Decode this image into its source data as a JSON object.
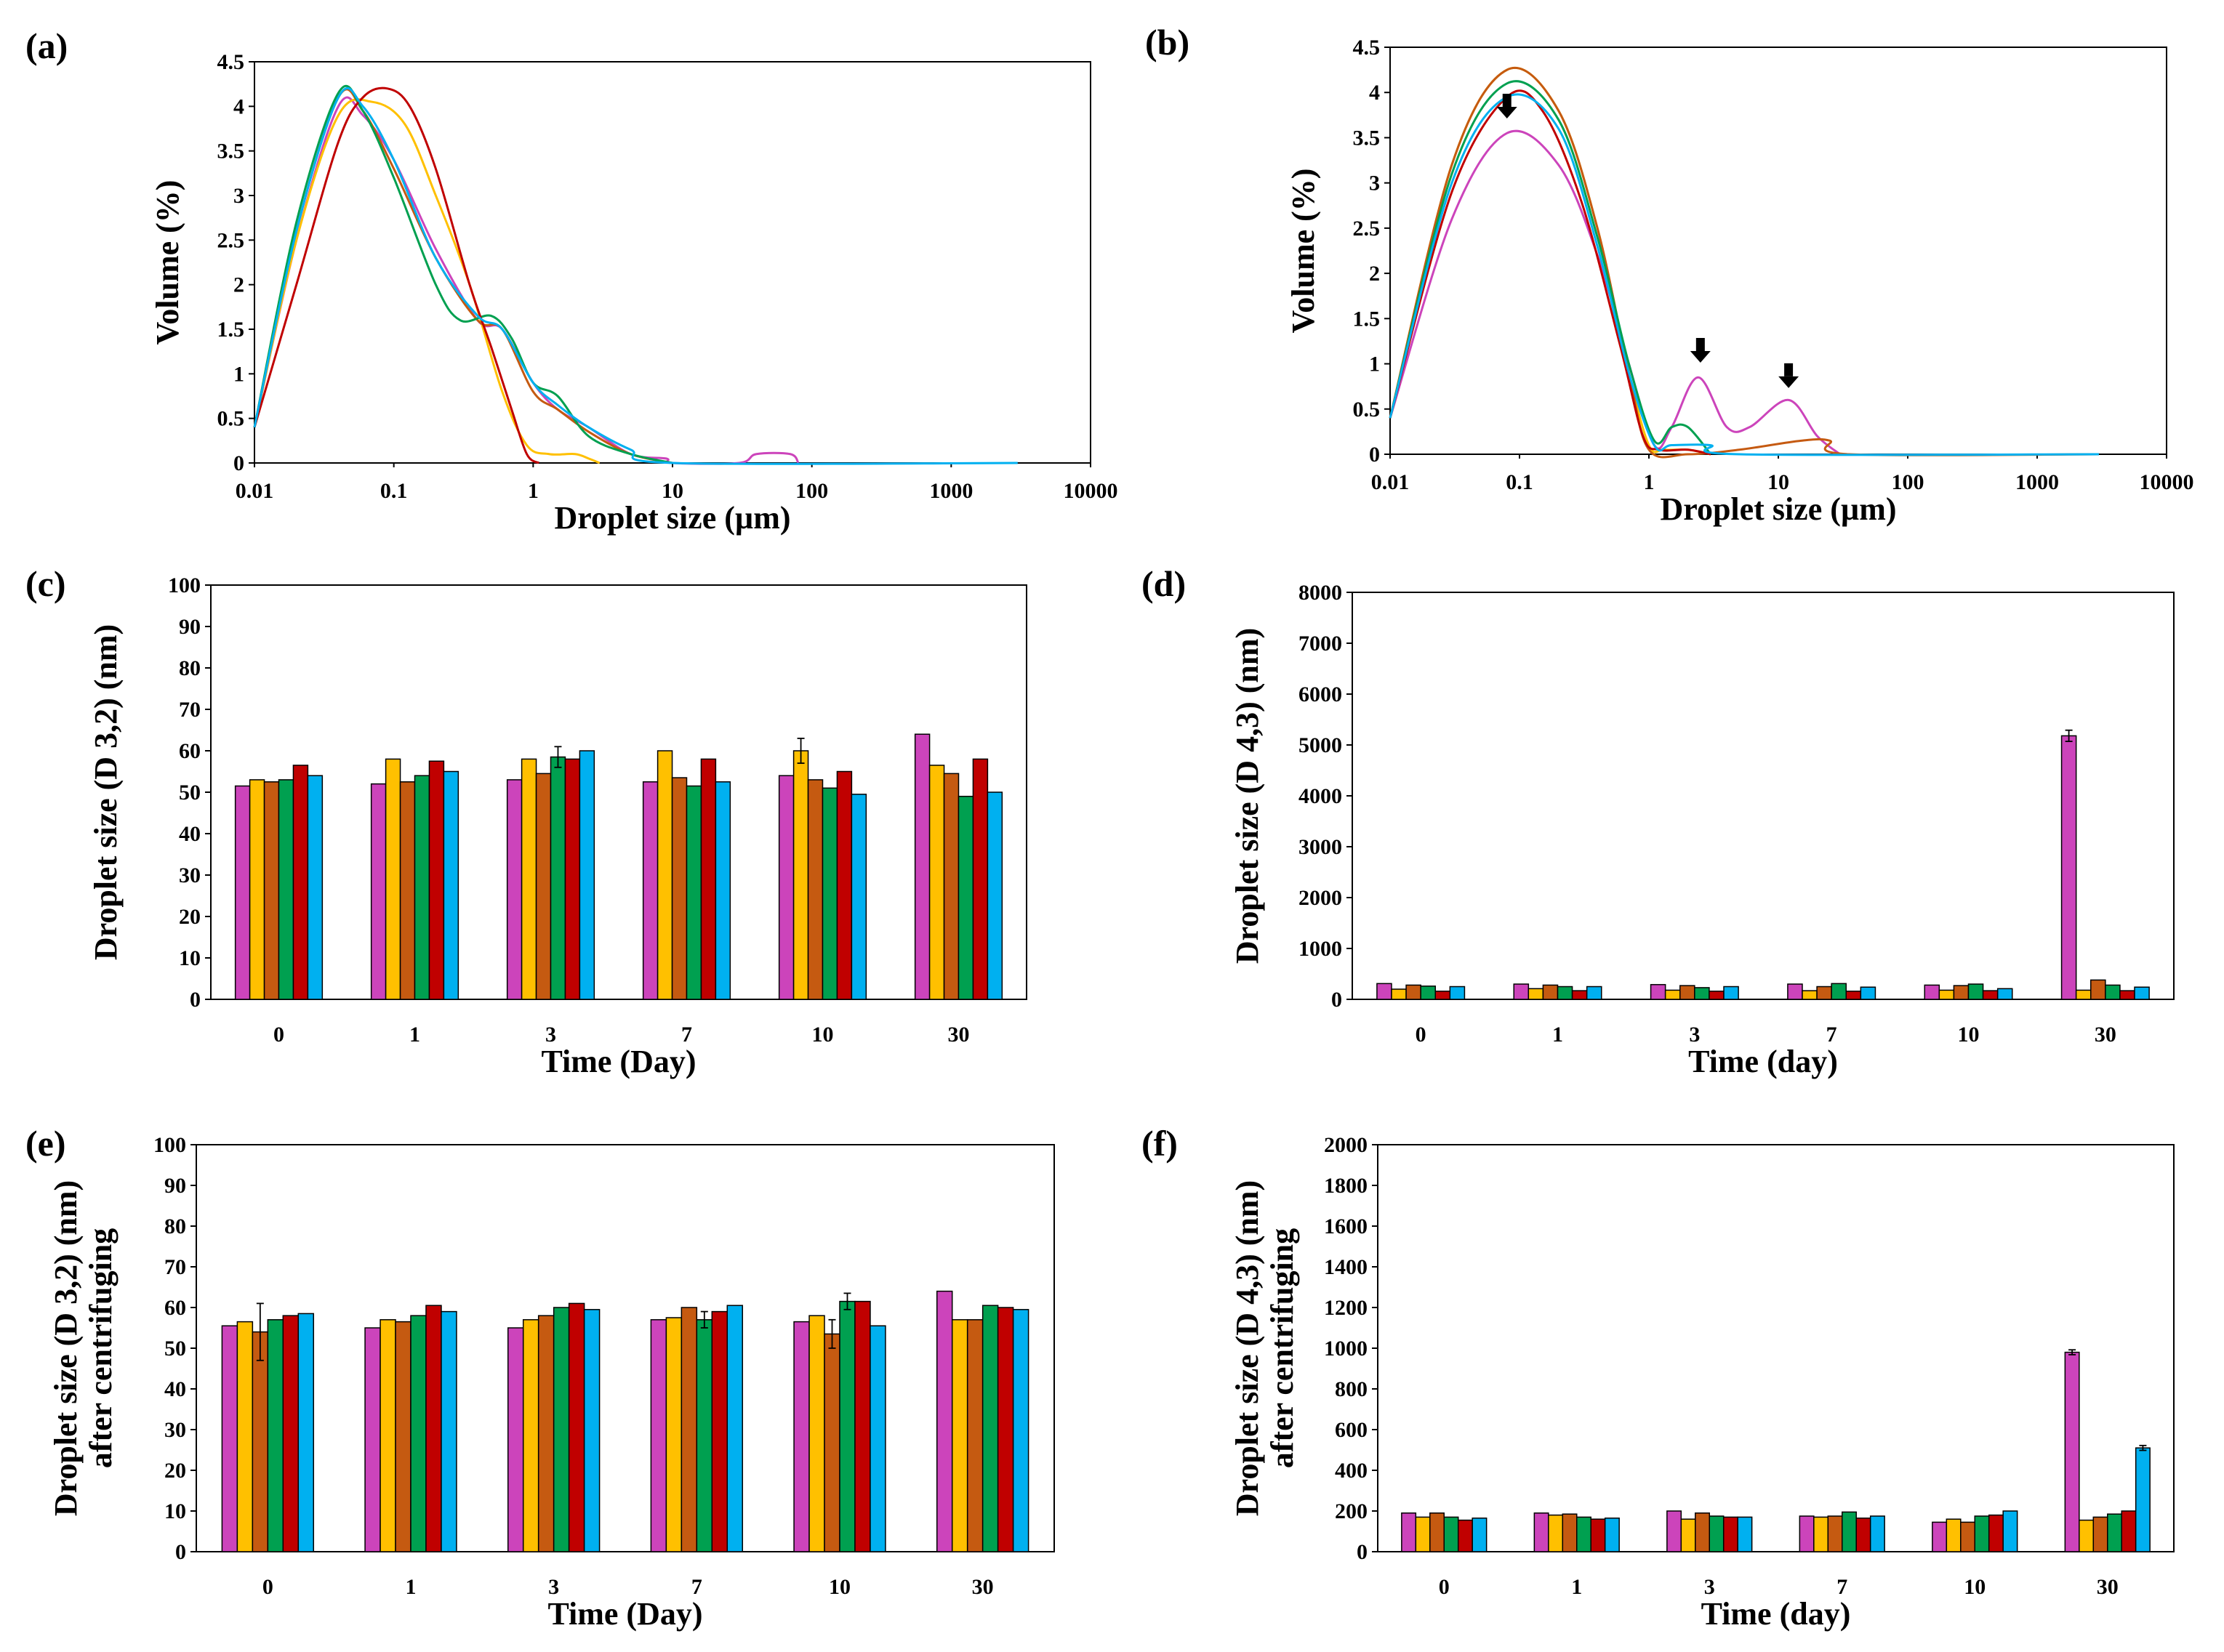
{
  "colors": [
    "#cc44bb",
    "#ffc000",
    "#c55a11",
    "#00a050",
    "#c00000",
    "#00b0f0"
  ],
  "chart_data": [
    {
      "id": "a",
      "panel_label": "(a)",
      "type": "line",
      "xscale": "log",
      "xlim": [
        0.01,
        10000
      ],
      "ylim": [
        0,
        4.5
      ],
      "xticks": [
        "0.01",
        "0.1",
        "1",
        "10",
        "100",
        "1000",
        "10000"
      ],
      "yticks": [
        "0",
        "0.5",
        "1",
        "1.5",
        "2",
        "2.5",
        "3",
        "3.5",
        "4",
        "4.5"
      ],
      "xlabel": "Droplet size  (µm)",
      "ylabel": "Volume (%)",
      "series": [
        {
          "color_index": 0,
          "x": [
            0.01,
            0.02,
            0.04,
            0.06,
            0.1,
            0.2,
            0.4,
            0.6,
            1,
            1.5,
            2.5,
            5,
            9,
            10,
            30,
            40,
            70,
            80
          ],
          "y": [
            0.4,
            2.5,
            4.0,
            3.9,
            3.4,
            2.4,
            1.6,
            1.5,
            0.9,
            0.6,
            0.4,
            0.1,
            0.05,
            0,
            0,
            0.1,
            0.1,
            0
          ]
        },
        {
          "color_index": 1,
          "x": [
            0.01,
            0.02,
            0.04,
            0.07,
            0.12,
            0.2,
            0.35,
            0.6,
            0.9,
            1.3,
            2,
            2.5,
            3
          ],
          "y": [
            0.4,
            2.5,
            3.9,
            4.05,
            3.8,
            3.0,
            2.0,
            0.8,
            0.2,
            0.1,
            0.1,
            0.05,
            0
          ]
        },
        {
          "color_index": 2,
          "x": [
            0.01,
            0.02,
            0.04,
            0.06,
            0.1,
            0.2,
            0.4,
            0.6,
            1,
            1.5,
            2.5,
            5,
            10
          ],
          "y": [
            0.4,
            2.6,
            4.1,
            3.95,
            3.3,
            2.3,
            1.6,
            1.5,
            0.8,
            0.6,
            0.35,
            0.1,
            0
          ]
        },
        {
          "color_index": 3,
          "x": [
            0.01,
            0.02,
            0.04,
            0.06,
            0.1,
            0.2,
            0.3,
            0.5,
            0.7,
            1,
            1.5,
            2.5,
            5,
            10
          ],
          "y": [
            0.4,
            2.7,
            4.15,
            3.95,
            3.2,
            2.0,
            1.6,
            1.65,
            1.4,
            0.9,
            0.75,
            0.3,
            0.1,
            0
          ]
        },
        {
          "color_index": 4,
          "x": [
            0.01,
            0.02,
            0.04,
            0.06,
            0.09,
            0.13,
            0.2,
            0.35,
            0.5,
            0.7,
            0.9,
            1.1
          ],
          "y": [
            0.4,
            2.0,
            3.6,
            4.1,
            4.2,
            4.0,
            3.3,
            2.0,
            1.3,
            0.6,
            0.1,
            0
          ]
        },
        {
          "color_index": 5,
          "x": [
            0.01,
            0.02,
            0.04,
            0.06,
            0.1,
            0.2,
            0.4,
            0.6,
            1,
            1.5,
            2.5,
            5,
            10,
            3000
          ],
          "y": [
            0.4,
            2.6,
            4.1,
            4.0,
            3.4,
            2.3,
            1.65,
            1.5,
            0.9,
            0.65,
            0.4,
            0.15,
            0,
            0
          ]
        }
      ]
    },
    {
      "id": "b",
      "panel_label": "(b)",
      "type": "line",
      "xscale": "log",
      "xlim": [
        0.01,
        10000
      ],
      "ylim": [
        0,
        4.5
      ],
      "xticks": [
        "0.01",
        "0.1",
        "1",
        "10",
        "100",
        "1000",
        "10000"
      ],
      "yticks": [
        "0",
        "0.5",
        "1",
        "1.5",
        "2",
        "2.5",
        "3",
        "3.5",
        "4",
        "4.5"
      ],
      "xlabel": "Droplet size  (µm)",
      "ylabel": "Volume (%)",
      "annotations": [
        {
          "type": "arrow",
          "x": 0.08,
          "y": 3.6
        },
        {
          "type": "arrow",
          "x": 2.5,
          "y": 0.9
        },
        {
          "type": "arrow",
          "x": 12,
          "y": 0.62
        }
      ],
      "series": [
        {
          "color_index": 0,
          "x": [
            0.01,
            0.03,
            0.08,
            0.2,
            0.4,
            0.7,
            1.1,
            1.5,
            2.4,
            4,
            6,
            12,
            20,
            30
          ],
          "y": [
            0.4,
            2.6,
            3.55,
            3.2,
            2.2,
            1.0,
            0.1,
            0.3,
            0.85,
            0.3,
            0.3,
            0.6,
            0.2,
            0
          ]
        },
        {
          "color_index": 1,
          "x": [
            0.01,
            0.03,
            0.08,
            0.2,
            0.4,
            0.7,
            1.0,
            1.3,
            2,
            3
          ],
          "y": [
            0.4,
            3.2,
            4.25,
            3.8,
            2.5,
            0.9,
            0.1,
            0.05,
            0.05,
            0
          ]
        },
        {
          "color_index": 2,
          "x": [
            0.01,
            0.03,
            0.08,
            0.2,
            0.4,
            0.7,
            1.0,
            2,
            5,
            15,
            25,
            35,
            3000
          ],
          "y": [
            0.4,
            3.2,
            4.25,
            3.8,
            2.5,
            0.9,
            0.05,
            0,
            0.05,
            0.15,
            0.15,
            0,
            0
          ]
        },
        {
          "color_index": 3,
          "x": [
            0.01,
            0.03,
            0.08,
            0.2,
            0.4,
            0.7,
            1.1,
            1.5,
            2,
            3
          ],
          "y": [
            0.4,
            3.1,
            4.1,
            3.7,
            2.4,
            1.0,
            0.15,
            0.3,
            0.3,
            0
          ]
        },
        {
          "color_index": 4,
          "x": [
            0.01,
            0.03,
            0.08,
            0.15,
            0.3,
            0.6,
            0.9,
            1.2,
            2,
            3
          ],
          "y": [
            0.4,
            2.9,
            3.95,
            3.8,
            2.8,
            1.2,
            0.2,
            0.05,
            0.05,
            0
          ]
        },
        {
          "color_index": 5,
          "x": [
            0.01,
            0.03,
            0.08,
            0.2,
            0.4,
            0.7,
            1.1,
            1.5,
            3,
            5,
            3000
          ],
          "y": [
            0.4,
            3.0,
            3.95,
            3.6,
            2.3,
            0.9,
            0.1,
            0.1,
            0.1,
            0,
            0
          ]
        }
      ]
    },
    {
      "id": "c",
      "panel_label": "(c)",
      "type": "bar",
      "categories": [
        "0",
        "1",
        "3",
        "7",
        "10",
        "30"
      ],
      "ylim": [
        0,
        100
      ],
      "yticks": [
        "0",
        "10",
        "20",
        "30",
        "40",
        "50",
        "60",
        "70",
        "80",
        "90",
        "100"
      ],
      "xlabel": "Time (Day)",
      "ylabel": [
        "Droplet size (D 3,2) (nm)"
      ],
      "series": [
        {
          "color_index": 0,
          "values": [
            51.5,
            52,
            53,
            52.5,
            54,
            64
          ]
        },
        {
          "color_index": 1,
          "values": [
            53,
            58,
            58,
            60,
            60,
            56.5
          ]
        },
        {
          "color_index": 2,
          "values": [
            52.5,
            52.5,
            54.5,
            53.5,
            53,
            54.5
          ]
        },
        {
          "color_index": 3,
          "values": [
            53,
            54,
            58.5,
            51.5,
            51,
            49
          ]
        },
        {
          "color_index": 4,
          "values": [
            56.5,
            57.5,
            58,
            58,
            55,
            58
          ]
        },
        {
          "color_index": 5,
          "values": [
            54,
            55,
            60,
            52.5,
            49.5,
            50
          ]
        }
      ],
      "errors": [
        {
          "series": 1,
          "category": 4,
          "err": 3
        },
        {
          "series": 3,
          "category": 2,
          "err": 2.5
        }
      ]
    },
    {
      "id": "d",
      "panel_label": "(d)",
      "type": "bar",
      "categories": [
        "0",
        "1",
        "3",
        "7",
        "10",
        "30"
      ],
      "ylim": [
        0,
        8000
      ],
      "yticks": [
        "0",
        "1000",
        "2000",
        "3000",
        "4000",
        "5000",
        "6000",
        "7000",
        "8000"
      ],
      "xlabel": "Time (day)",
      "ylabel": [
        "Droplet size (D 4,3) (nm)"
      ],
      "series": [
        {
          "color_index": 0,
          "values": [
            310,
            300,
            290,
            300,
            280,
            5180
          ]
        },
        {
          "color_index": 1,
          "values": [
            200,
            210,
            180,
            170,
            180,
            180
          ]
        },
        {
          "color_index": 2,
          "values": [
            280,
            280,
            270,
            250,
            270,
            380
          ]
        },
        {
          "color_index": 3,
          "values": [
            260,
            250,
            230,
            310,
            300,
            280
          ]
        },
        {
          "color_index": 4,
          "values": [
            160,
            170,
            160,
            160,
            170,
            170
          ]
        },
        {
          "color_index": 5,
          "values": [
            250,
            250,
            250,
            240,
            210,
            240
          ]
        }
      ],
      "errors": [
        {
          "series": 0,
          "category": 5,
          "err": 110
        }
      ]
    },
    {
      "id": "e",
      "panel_label": "(e)",
      "type": "bar",
      "categories": [
        "0",
        "1",
        "3",
        "7",
        "10",
        "30"
      ],
      "ylim": [
        0,
        100
      ],
      "yticks": [
        "0",
        "10",
        "20",
        "30",
        "40",
        "50",
        "60",
        "70",
        "80",
        "90",
        "100"
      ],
      "xlabel": "Time (Day)",
      "ylabel": [
        "Droplet size (D 3,2) (nm)",
        "after centrifuging"
      ],
      "series": [
        {
          "color_index": 0,
          "values": [
            55.5,
            55,
            55,
            57,
            56.5,
            64
          ]
        },
        {
          "color_index": 1,
          "values": [
            56.5,
            57,
            57,
            57.5,
            58,
            57
          ]
        },
        {
          "color_index": 2,
          "values": [
            54,
            56.5,
            58,
            60,
            53.5,
            57
          ]
        },
        {
          "color_index": 3,
          "values": [
            57,
            58,
            60,
            57,
            61.5,
            60.5
          ]
        },
        {
          "color_index": 4,
          "values": [
            58,
            60.5,
            61,
            59,
            61.5,
            60
          ]
        },
        {
          "color_index": 5,
          "values": [
            58.5,
            59,
            59.5,
            60.5,
            55.5,
            59.5
          ]
        }
      ],
      "errors": [
        {
          "series": 2,
          "category": 0,
          "err": 7
        },
        {
          "series": 2,
          "category": 4,
          "err": 3.5
        },
        {
          "series": 3,
          "category": 4,
          "err": 2
        },
        {
          "series": 3,
          "category": 3,
          "err": 2
        }
      ]
    },
    {
      "id": "f",
      "panel_label": "(f)",
      "type": "bar",
      "categories": [
        "0",
        "1",
        "3",
        "7",
        "10",
        "30"
      ],
      "ylim": [
        0,
        2000
      ],
      "yticks": [
        "0",
        "200",
        "400",
        "600",
        "800",
        "1000",
        "1200",
        "1400",
        "1600",
        "1800",
        "2000"
      ],
      "xlabel": "Time (day)",
      "ylabel": [
        "Droplet size (D 4,3) (nm)",
        "after centrifuging"
      ],
      "series": [
        {
          "color_index": 0,
          "values": [
            190,
            190,
            200,
            175,
            145,
            980
          ]
        },
        {
          "color_index": 1,
          "values": [
            170,
            180,
            160,
            170,
            160,
            155
          ]
        },
        {
          "color_index": 2,
          "values": [
            190,
            185,
            190,
            175,
            145,
            170
          ]
        },
        {
          "color_index": 3,
          "values": [
            170,
            170,
            175,
            195,
            175,
            185
          ]
        },
        {
          "color_index": 4,
          "values": [
            155,
            160,
            170,
            165,
            180,
            200
          ]
        },
        {
          "color_index": 5,
          "values": [
            165,
            165,
            170,
            175,
            200,
            510
          ]
        }
      ],
      "errors": [
        {
          "series": 0,
          "category": 5,
          "err": 12
        },
        {
          "series": 5,
          "category": 5,
          "err": 12
        }
      ]
    }
  ]
}
